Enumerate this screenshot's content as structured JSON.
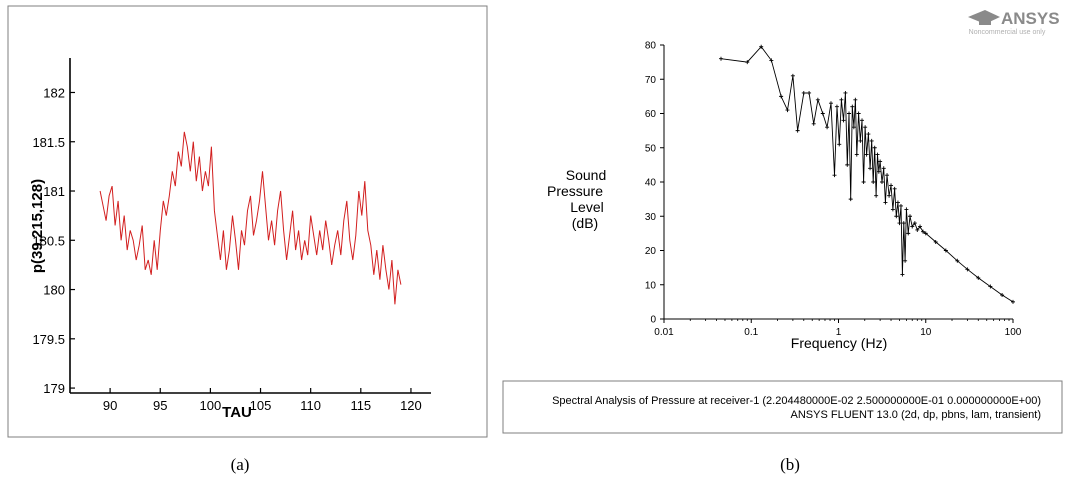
{
  "chart_data": [
    {
      "type": "line",
      "panel_label": "(a)",
      "xlabel": "TAU",
      "ylabel": "p(39,215,128)",
      "xlim": [
        86,
        122
      ],
      "ylim": [
        178.95,
        182.35
      ],
      "x_ticks": [
        90,
        95,
        100,
        105,
        110,
        115,
        120
      ],
      "y_ticks": [
        179,
        179.5,
        180,
        180.5,
        181,
        181.5,
        182
      ],
      "x_tick_labels": [
        "90",
        "95",
        "100",
        "105",
        "110",
        "115",
        "120"
      ],
      "y_tick_labels": [
        "179",
        "179.5",
        "180",
        "180.5",
        "181",
        "181.5",
        "182"
      ],
      "grid": false,
      "line_color": "#d21f1f",
      "series": [
        {
          "x": [
            89.0,
            89.3,
            89.6,
            89.9,
            90.2,
            90.5,
            90.8,
            91.1,
            91.4,
            91.7,
            92.0,
            92.3,
            92.6,
            92.9,
            93.2,
            93.5,
            93.8,
            94.1,
            94.4,
            94.7,
            95.0,
            95.3,
            95.6,
            95.9,
            96.2,
            96.5,
            96.8,
            97.1,
            97.4,
            97.7,
            98.0,
            98.3,
            98.6,
            98.9,
            99.2,
            99.5,
            99.8,
            100.1,
            100.4,
            100.7,
            101.0,
            101.3,
            101.6,
            101.9,
            102.2,
            102.5,
            102.8,
            103.1,
            103.4,
            103.7,
            104.0,
            104.3,
            104.6,
            104.9,
            105.2,
            105.5,
            105.8,
            106.1,
            106.4,
            106.7,
            107.0,
            107.3,
            107.6,
            107.9,
            108.2,
            108.5,
            108.8,
            109.1,
            109.4,
            109.7,
            110.0,
            110.3,
            110.6,
            110.9,
            111.2,
            111.5,
            111.8,
            112.1,
            112.4,
            112.7,
            113.0,
            113.3,
            113.6,
            113.9,
            114.2,
            114.5,
            114.8,
            115.1,
            115.4,
            115.7,
            116.0,
            116.3,
            116.6,
            116.9,
            117.2,
            117.5,
            117.8,
            118.1,
            118.4,
            118.7,
            119.0
          ],
          "y": [
            181.0,
            180.85,
            180.7,
            180.95,
            181.05,
            180.65,
            180.9,
            180.5,
            180.75,
            180.4,
            180.6,
            180.5,
            180.3,
            180.45,
            180.65,
            180.2,
            180.3,
            180.15,
            180.5,
            180.2,
            180.6,
            180.9,
            180.75,
            180.95,
            181.2,
            181.05,
            181.4,
            181.25,
            181.6,
            181.45,
            181.2,
            181.5,
            181.1,
            181.35,
            181.0,
            181.2,
            181.05,
            181.45,
            180.8,
            180.55,
            180.3,
            180.6,
            180.2,
            180.4,
            180.75,
            180.5,
            180.2,
            180.6,
            180.45,
            180.8,
            180.95,
            180.55,
            180.7,
            180.9,
            181.2,
            180.85,
            180.5,
            180.7,
            180.45,
            180.8,
            181.0,
            180.6,
            180.3,
            180.55,
            180.8,
            180.4,
            180.6,
            180.3,
            180.5,
            180.35,
            180.75,
            180.55,
            180.35,
            180.6,
            180.4,
            180.7,
            180.5,
            180.25,
            180.45,
            180.6,
            180.35,
            180.7,
            180.9,
            180.5,
            180.3,
            180.55,
            181.0,
            180.75,
            181.1,
            180.6,
            180.45,
            180.15,
            180.4,
            180.1,
            180.45,
            180.2,
            180.0,
            180.3,
            179.85,
            180.2,
            180.05
          ]
        }
      ]
    },
    {
      "type": "line",
      "panel_label": "(b)",
      "xlabel": "Frequency (Hz)",
      "ylabel": "Sound Pressure Level (dB)",
      "ylabel_lines": [
        "Sound",
        "Pressure",
        "Level",
        "(dB)"
      ],
      "xscale": "log",
      "xlim": [
        0.01,
        100
      ],
      "ylim": [
        0,
        80
      ],
      "x_ticks": [
        0.01,
        0.1,
        1,
        10,
        100
      ],
      "x_tick_labels": [
        "0.01",
        "0.1",
        "1",
        "10",
        "100"
      ],
      "y_ticks": [
        0,
        10,
        20,
        30,
        40,
        50,
        60,
        70,
        80
      ],
      "y_tick_labels": [
        "0",
        "10",
        "20",
        "30",
        "40",
        "50",
        "60",
        "70",
        "80"
      ],
      "grid": false,
      "line_color": "#000000",
      "marker": "+",
      "series": [
        {
          "x": [
            0.045,
            0.09,
            0.13,
            0.17,
            0.22,
            0.26,
            0.3,
            0.34,
            0.4,
            0.46,
            0.52,
            0.58,
            0.66,
            0.74,
            0.82,
            0.9,
            0.96,
            1.02,
            1.08,
            1.14,
            1.2,
            1.26,
            1.32,
            1.38,
            1.44,
            1.5,
            1.56,
            1.62,
            1.7,
            1.78,
            1.86,
            1.94,
            2.02,
            2.1,
            2.2,
            2.3,
            2.4,
            2.5,
            2.6,
            2.7,
            2.8,
            2.9,
            3.0,
            3.15,
            3.3,
            3.45,
            3.6,
            3.8,
            4.0,
            4.2,
            4.4,
            4.6,
            4.8,
            5.0,
            5.2,
            5.4,
            5.6,
            5.8,
            6.0,
            6.3,
            6.6,
            7.0,
            7.5,
            8.0,
            8.6,
            9.3,
            10.0,
            13.0,
            17.0,
            23.0,
            30.0,
            40.0,
            55.0,
            75.0,
            100.0
          ],
          "y": [
            76,
            75,
            79.5,
            75.5,
            65,
            61,
            71,
            55,
            66,
            66,
            57,
            64,
            60,
            56,
            63,
            42,
            62,
            51,
            64,
            58,
            66,
            45,
            60,
            35,
            62,
            56,
            64,
            48,
            60,
            52,
            58,
            40,
            56,
            48,
            54,
            44,
            52,
            40,
            50,
            36,
            48,
            43,
            46,
            40,
            44,
            34,
            42,
            36,
            39,
            32,
            38,
            30,
            34,
            28,
            33,
            13,
            28,
            17,
            32,
            25,
            30,
            27,
            28,
            26,
            27,
            25.5,
            25,
            22.5,
            20,
            17,
            14.5,
            12,
            9.5,
            7,
            5
          ]
        }
      ],
      "caption_lines": [
        "Spectral Analysis of Pressure at receiver-1 (2.204480000E-02 2.500000000E-01 0.000000000E+00)",
        "ANSYS FLUENT 13.0 (2d, dp, pbns, lam, transient)"
      ],
      "logo_text": "ANSYS",
      "logo_subtext": "Noncommercial use only"
    }
  ]
}
